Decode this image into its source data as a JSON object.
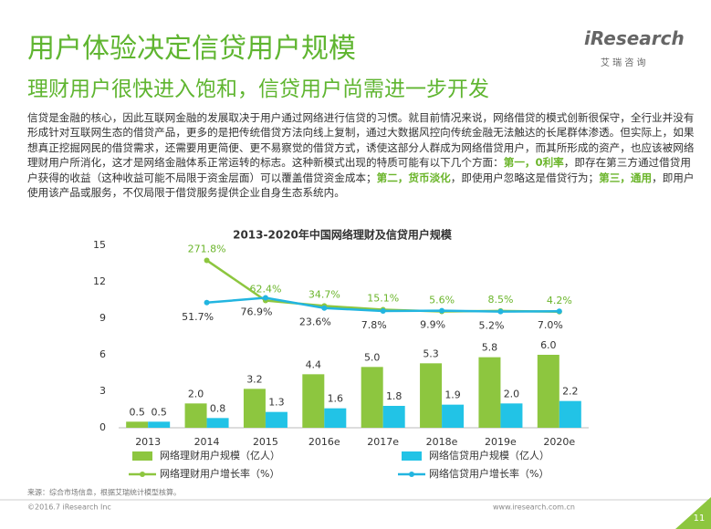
{
  "header": {
    "title": "用户体验决定信贷用户规模",
    "subtitle": "理财用户很快进入饱和，信贷用户尚需进一步开发",
    "logo": "iResearch",
    "logo_sub": "艾 瑞 咨 询"
  },
  "paragraph": [
    "信贷是金融的核心，因此互联网金融的发展取决于用户通过网络进行信贷的习惯。就目前情况来说，网络借贷的模式创新很保守，全行业并没有形成针对互联网生态的借贷产品，更多的是把传统借贷方法向线上复制，通过大数据风控向传统金融无法触达的长尾群体渗透。但实际上，如果想真正挖掘网民的借贷需求，还需要用更简便、更不易察觉的借贷方式，诱使这部分人群成为网络借贷用户，而其所形成的资产，也应该被网络理财用户所消化，这才是网络金融体系正常运转的标志。这种新模式出现的特质可能有以下几个方面：",
    "第一，0利率",
    "，即存在第三方通过借贷用户获得的收益（这种收益可能不局限于资金层面）可以覆盖借贷资金成本；",
    "第二，货币淡化",
    "，即使用户忽略这是借贷行为；",
    "第三，通用",
    "，即用户使用该产品或服务，不仅局限于借贷服务提供企业自身生态系统内。"
  ],
  "chart_data": {
    "type": "combo",
    "title": "2013-2020年中国网络理财及信贷用户规模",
    "categories": [
      "2013",
      "2014",
      "2015",
      "2016e",
      "2017e",
      "2018e",
      "2019e",
      "2020e"
    ],
    "ylim": [
      0,
      15
    ],
    "yticks": [
      0,
      3,
      6,
      9,
      12,
      15
    ],
    "y2lim": [
      -600,
      350
    ],
    "series": [
      {
        "name": "网络理财用户规模（亿人）",
        "type": "bar",
        "color": "#8dc63f",
        "values": [
          0.5,
          2.0,
          3.2,
          4.4,
          5.0,
          5.3,
          5.8,
          6.0
        ],
        "value_labels": [
          "0.5",
          "2.0",
          "3.2",
          "4.4",
          "5.0",
          "5.3",
          "5.8",
          "6.0"
        ]
      },
      {
        "name": "网络信贷用户规模（亿人）",
        "type": "bar",
        "color": "#22c3e6",
        "values": [
          0.5,
          0.8,
          1.3,
          1.6,
          1.8,
          1.9,
          2.0,
          2.2
        ],
        "value_labels": [
          "0.5",
          "0.8",
          "1.3",
          "1.6",
          "1.8",
          "1.9",
          "2.0",
          "2.2"
        ]
      },
      {
        "name": "网络理财用户增长率（%）",
        "type": "line",
        "axis": "y2",
        "color": "#8dc63f",
        "values": [
          null,
          271.8,
          62.4,
          34.7,
          15.1,
          5.6,
          8.5,
          4.2
        ],
        "value_labels": [
          null,
          "271.8%",
          "62.4%",
          "34.7%",
          "15.1%",
          "5.6%",
          "8.5%",
          "4.2%"
        ]
      },
      {
        "name": "网络信贷用户增长率（%）",
        "type": "line",
        "axis": "y2",
        "color": "#22b5e0",
        "values": [
          null,
          51.7,
          76.9,
          23.6,
          7.8,
          9.9,
          5.2,
          7.0
        ],
        "value_labels": [
          null,
          "51.7%",
          "76.9%",
          "23.6%",
          "7.8%",
          "9.9%",
          "5.2%",
          "7.0%"
        ]
      }
    ]
  },
  "source": "来源：综合市场信息，根据艾瑞统计模型核算。",
  "footer": {
    "copyright": "©2016.7 iResearch Inc",
    "url": "www.iresearch.com.cn",
    "page": "11"
  }
}
